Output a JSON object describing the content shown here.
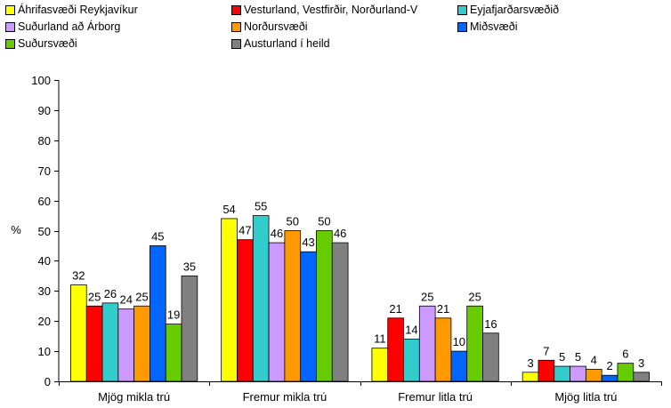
{
  "chart_data": {
    "type": "bar",
    "ylabel": "%",
    "ylim": [
      0,
      100
    ],
    "yticks": [
      0,
      10,
      20,
      30,
      40,
      50,
      60,
      70,
      80,
      90,
      100
    ],
    "categories": [
      "Mjög mikla trú",
      "Fremur mikla trú",
      "Fremur litla trú",
      "Mjög litla trú"
    ],
    "legend_position": "top",
    "series": [
      {
        "name": "Áhrifasvæði Reykjavíkur",
        "color": "#ffff00",
        "values": [
          32,
          54,
          11,
          3
        ]
      },
      {
        "name": "Vesturland, Vestfirðir, Norðurland-V",
        "color": "#ff0000",
        "values": [
          25,
          47,
          21,
          7
        ]
      },
      {
        "name": "Eyjafjarðarsvæðið",
        "color": "#33cccc",
        "values": [
          26,
          55,
          14,
          5
        ]
      },
      {
        "name": "Suðurland að Árborg",
        "color": "#cc99ff",
        "values": [
          24,
          46,
          25,
          5
        ]
      },
      {
        "name": "Norðursvæði",
        "color": "#ff9900",
        "values": [
          25,
          50,
          21,
          4
        ]
      },
      {
        "name": "Miðsvæði",
        "color": "#0066ff",
        "values": [
          45,
          43,
          10,
          2
        ]
      },
      {
        "name": "Suðursvæði",
        "color": "#66cc00",
        "values": [
          19,
          50,
          25,
          6
        ]
      },
      {
        "name": "Austurland í heild",
        "color": "#808080",
        "values": [
          35,
          46,
          16,
          3
        ]
      }
    ]
  }
}
